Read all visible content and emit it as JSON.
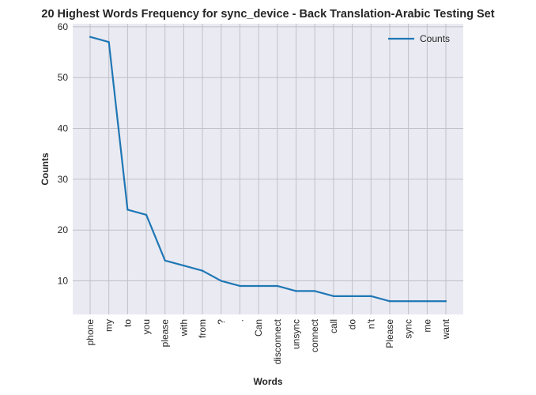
{
  "chart_data": {
    "type": "line",
    "title": "20 Highest Words Frequency for sync_device - Back Translation-Arabic Testing Set",
    "xlabel": "Words",
    "ylabel": "Counts",
    "categories": [
      "phone",
      "my",
      "to",
      "you",
      "please",
      "with",
      "from",
      "?",
      ".",
      "Can",
      "disconnect",
      "unsync",
      "connect",
      "call",
      "do",
      "n't",
      "Please",
      "sync",
      "me",
      "want"
    ],
    "series": [
      {
        "name": "Counts",
        "values": [
          58,
          57,
          24,
          23,
          14,
          13,
          12,
          10,
          9,
          9,
          9,
          8,
          8,
          7,
          7,
          7,
          6,
          6,
          6,
          6
        ]
      }
    ],
    "ylim": [
      3.4,
      60.6
    ],
    "yticks": [
      10,
      20,
      30,
      40,
      50,
      60
    ],
    "grid": true,
    "legend": "top-right",
    "colors": {
      "line": "#1f77b4",
      "background": "#eaeaf2",
      "grid": "#c0c0c8"
    }
  }
}
